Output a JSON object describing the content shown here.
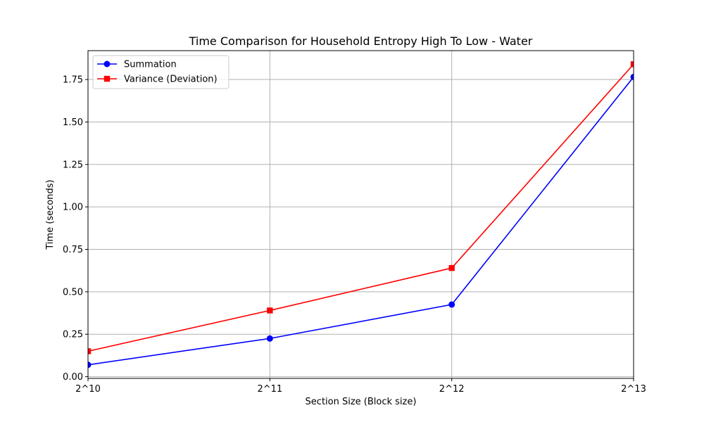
{
  "chart_data": {
    "type": "line",
    "title": "Time Comparison for Household Entropy High To Low - Water",
    "xlabel": "Section Size (Block size)",
    "ylabel": "Time (seconds)",
    "x_scale": "log2",
    "x": [
      1024,
      2048,
      4096,
      8192
    ],
    "x_tick_labels": [
      "2^10",
      "2^11",
      "2^12",
      "2^13"
    ],
    "xlim": [
      1024,
      8192
    ],
    "ylim": [
      -0.01,
      1.92
    ],
    "y_ticks": [
      0.0,
      0.25,
      0.5,
      0.75,
      1.0,
      1.25,
      1.5,
      1.75
    ],
    "y_tick_labels": [
      "0.00",
      "0.25",
      "0.50",
      "0.75",
      "1.00",
      "1.25",
      "1.50",
      "1.75"
    ],
    "grid": true,
    "legend_position": "top-left",
    "series": [
      {
        "name": "Summation",
        "values": [
          0.07,
          0.225,
          0.425,
          1.765
        ],
        "color": "#0000ff",
        "marker": "circle"
      },
      {
        "name": "Variance (Deviation)",
        "values": [
          0.15,
          0.39,
          0.64,
          1.84
        ],
        "color": "#ff0000",
        "marker": "square"
      }
    ]
  }
}
